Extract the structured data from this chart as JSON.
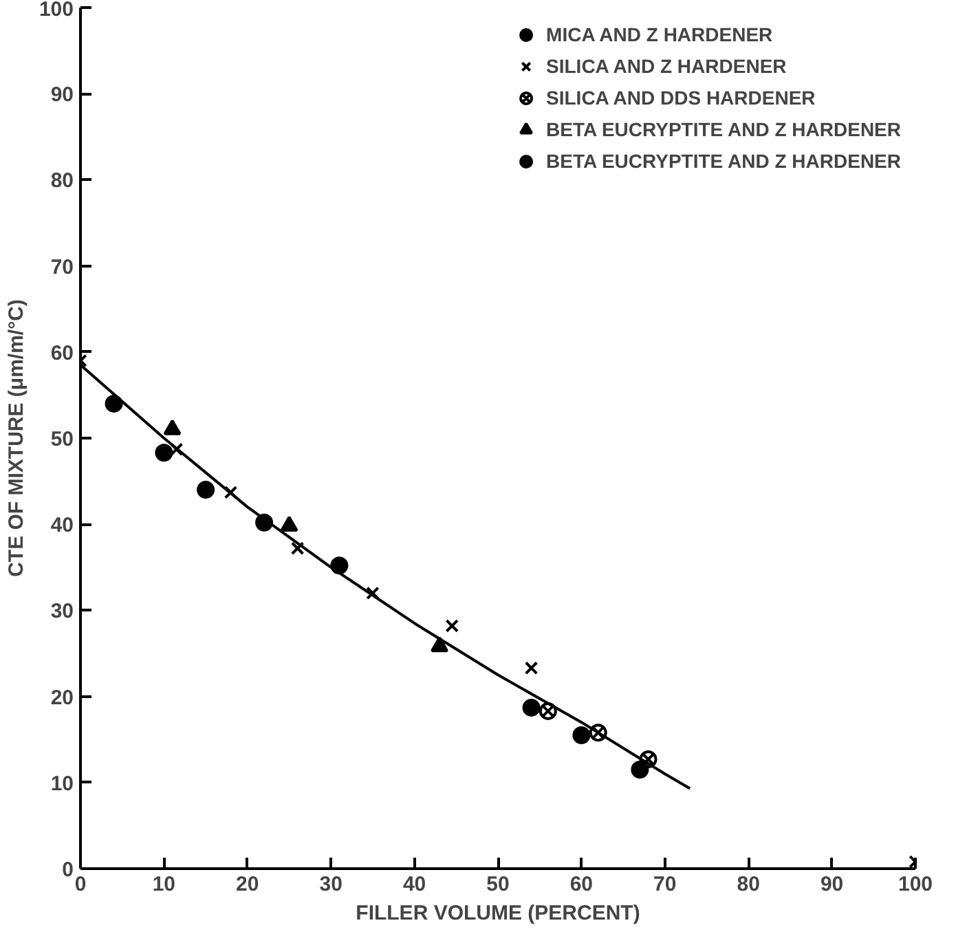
{
  "chart_data": {
    "type": "scatter",
    "xlabel": "FILLER VOLUME (PERCENT)",
    "ylabel": "CTE OF MIXTURE (μm/m/°C)",
    "xlim": [
      0,
      100
    ],
    "ylim": [
      0,
      100
    ],
    "xticks": [
      0,
      10,
      20,
      30,
      40,
      50,
      60,
      70,
      80,
      90,
      100
    ],
    "yticks": [
      0,
      10,
      20,
      30,
      40,
      50,
      60,
      70,
      80,
      90,
      100
    ],
    "grid": false,
    "legend": "top right",
    "series": [
      {
        "name": "MICA AND Z HARDENER",
        "color": "#000000",
        "marker": "circle",
        "x": [
          4,
          10,
          15,
          22,
          31
        ],
        "values": [
          54,
          48.3,
          44,
          40.2,
          35.2
        ]
      },
      {
        "name": "SILICA AND Z HARDENER",
        "color": "#000000",
        "marker": "cross",
        "x": [
          0,
          11.5,
          18,
          26,
          35,
          44.5,
          54,
          100
        ],
        "values": [
          59,
          48.7,
          43.7,
          37.2,
          32,
          28.2,
          23.3,
          0.8
        ]
      },
      {
        "name": "SILICA AND DDS HARDENER",
        "color": "#000000",
        "marker": "cross",
        "x": [
          56,
          62,
          68
        ],
        "values": [
          18.3,
          15.8,
          12.7
        ]
      },
      {
        "name": "BETA EUCRYPTITE AND Z HARDENER",
        "color": "#000000",
        "marker": "triangle",
        "x": [
          11,
          25,
          43
        ],
        "values": [
          51,
          39.8,
          25.8
        ]
      },
      {
        "name": "BETA EUCRYPTITE AND Z HARDENER",
        "color": "#000000",
        "marker": "circle",
        "x": [
          54,
          60,
          67
        ],
        "values": [
          18.7,
          15.5,
          11.5
        ]
      },
      {
        "type": "line",
        "color": "#000000",
        "line_style": "solid",
        "x": [
          0,
          10,
          20,
          30,
          40,
          50,
          60,
          70,
          73
        ],
        "values": [
          58.5,
          50,
          42,
          35,
          28.5,
          22.5,
          17,
          11,
          9.3
        ]
      }
    ]
  }
}
